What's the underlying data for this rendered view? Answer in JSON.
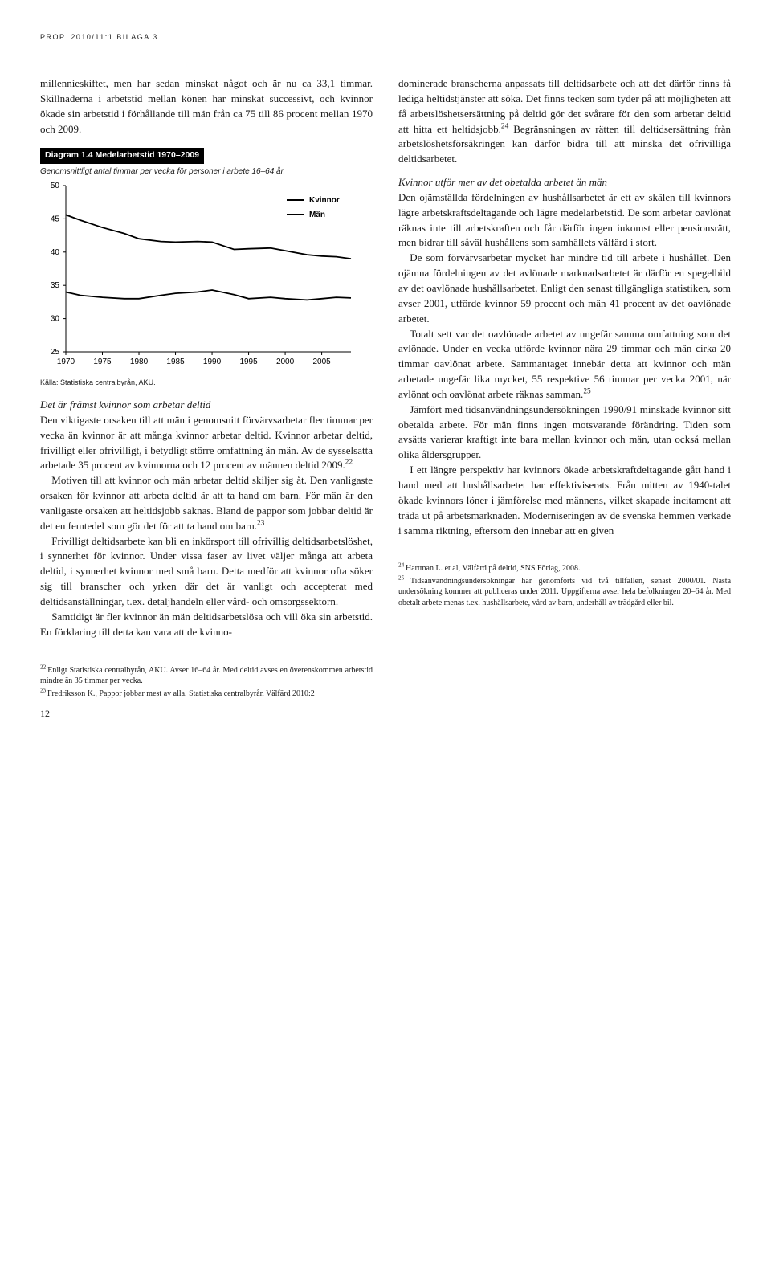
{
  "running_head": "PROP. 2010/11:1 BILAGA 3",
  "page_number": "12",
  "left": {
    "para1": "millennieskiftet, men har sedan minskat något och är nu ca 33,1 timmar. Skillnaderna i arbetstid mellan könen har minskat successivt, och kvinnor ökade sin arbetstid i förhållande till män från ca 75 till 86 procent mellan 1970 och 2009.",
    "diagram": {
      "label": "Diagram 1.4 Medelarbetstid 1970–2009",
      "subtitle": "Genomsnittligt antal timmar per vecka för personer i arbete 16–64 år.",
      "source": "Källa: Statistiska centralbyrån, AKU.",
      "type": "line",
      "xlim": [
        1970,
        2009
      ],
      "ylim": [
        25,
        50
      ],
      "xticks": [
        1970,
        1975,
        1980,
        1985,
        1990,
        1995,
        2000,
        2005
      ],
      "yticks": [
        25,
        30,
        35,
        40,
        45,
        50
      ],
      "background": "#ffffff",
      "axis_color": "#000000",
      "line_width": 1.8,
      "legend": [
        "Kvinnor",
        "Män"
      ],
      "series": {
        "kvinnor": {
          "color": "#000000",
          "x": [
            1970,
            1972,
            1975,
            1978,
            1980,
            1983,
            1985,
            1988,
            1990,
            1993,
            1995,
            1998,
            2000,
            2003,
            2005,
            2007,
            2009
          ],
          "y": [
            34.0,
            33.5,
            33.2,
            33.0,
            33.0,
            33.5,
            33.8,
            34.0,
            34.3,
            33.6,
            33.0,
            33.2,
            33.0,
            32.8,
            33.0,
            33.2,
            33.1
          ]
        },
        "man": {
          "color": "#000000",
          "x": [
            1970,
            1972,
            1975,
            1978,
            1980,
            1983,
            1985,
            1988,
            1990,
            1993,
            1995,
            1998,
            2000,
            2003,
            2005,
            2007,
            2009
          ],
          "y": [
            45.6,
            44.8,
            43.7,
            42.8,
            42.0,
            41.6,
            41.5,
            41.6,
            41.5,
            40.4,
            40.5,
            40.6,
            40.2,
            39.6,
            39.4,
            39.3,
            39.0
          ]
        }
      }
    },
    "subhead1": "Det är främst kvinnor som arbetar deltid",
    "para2": "Den viktigaste orsaken till att män i genomsnitt förvärvsarbetar fler timmar per vecka än kvinnor är att många kvinnor arbetar deltid. Kvinnor arbetar deltid, frivilligt eller ofrivilligt, i betydligt större omfattning än män. Av de sysselsatta arbetade 35 procent av kvinnorna och 12 procent av männen deltid 2009.",
    "fn22": "22",
    "para3a": "Motiven till att kvinnor och män arbetar deltid skiljer sig åt. Den vanligaste orsaken för kvinnor att arbeta deltid är att ta hand om barn. För män är den vanligaste orsaken att heltidsjobb saknas. Bland de pappor som jobbar deltid är det en femtedel som gör det för att ta hand om barn.",
    "fn23": "23",
    "para3b": "Frivilligt deltidsarbete kan bli en inkörsport till ofrivillig deltidsarbetslöshet, i synnerhet för kvinnor. Under vissa faser av livet väljer många att arbeta deltid, i synnerhet kvinnor med små barn. Detta medför att kvinnor ofta söker sig till branscher och yrken där det är vanligt och accepterat med deltidsanställningar, t.ex. detaljhandeln eller vård- och omsorgssektorn.",
    "para4": "Samtidigt är fler kvinnor än män deltidsarbetslösa och vill öka sin arbetstid. En förklaring till detta kan vara att de kvinno-"
  },
  "right": {
    "para1a": "dominerade branscherna anpassats till deltidsarbete och att det därför finns få lediga heltidstjänster att söka. Det finns tecken som tyder på att möjligheten att få arbetslöshetsersättning på deltid gör det svårare för den som arbetar deltid att hitta ett heltidsjobb.",
    "fn24": "24",
    "para1b": " Begränsningen av rätten till deltidsersättning från arbetslöshetsförsäkringen kan därför bidra till att minska det ofrivilliga deltidsarbetet.",
    "subhead1": "Kvinnor utför mer av det obetalda arbetet än män",
    "para2": "Den ojämställda fördelningen av hushållsarbetet är ett av skälen till kvinnors lägre arbetskraftsdeltagande och lägre medelarbetstid. De som arbetar oavlönat räknas inte till arbetskraften och får därför ingen inkomst eller pensionsrätt, men bidrar till såväl hushållens som samhällets välfärd i stort.",
    "para3": "De som förvärvsarbetar mycket har mindre tid till arbete i hushållet. Den ojämna fördelningen av det avlönade marknadsarbetet är därför en spegelbild av det oavlönade hushållsarbetet. Enligt den senast tillgängliga statistiken, som avser 2001, utförde kvinnor 59 procent och män 41 procent av det oavlönade arbetet.",
    "para4a": "Totalt sett var det oavlönade arbetet av ungefär samma omfattning som det avlönade. Under en vecka utförde kvinnor nära 29 timmar och män cirka 20 timmar oavlönat arbete. Sammantaget innebär detta att kvinnor och män arbetade ungefär lika mycket, 55 respektive 56 timmar per vecka 2001, när avlönat och oavlönat arbete räknas samman.",
    "fn25": "25",
    "para5": "Jämfört med tidsanvändningsundersökningen 1990/91 minskade kvinnor sitt obetalda arbete. För män finns ingen motsvarande förändring. Tiden som avsätts varierar kraftigt inte bara mellan kvinnor och män, utan också mellan olika åldersgrupper.",
    "para6": "I ett längre perspektiv har kvinnors ökade arbetskraftdeltagande gått hand i hand med att hushållsarbetet har effektiviserats. Från mitten av 1940-talet ökade kvinnors löner i jämförelse med männens, vilket skapade incitament att träda ut på arbetsmarknaden. Moderniseringen av de svenska hemmen verkade i samma riktning, eftersom den innebar att en given"
  },
  "footnotes": {
    "left": [
      {
        "n": "22",
        "text": "Enligt Statistiska centralbyrån, AKU. Avser 16–64 år. Med deltid avses en överenskommen arbetstid mindre än 35 timmar per vecka."
      },
      {
        "n": "23",
        "text": "Fredriksson K., Pappor jobbar mest av alla, Statistiska centralbyrån Välfärd 2010:2"
      }
    ],
    "right": [
      {
        "n": "24",
        "text": "Hartman L. et al, Välfärd på deltid, SNS Förlag, 2008."
      },
      {
        "n": "25",
        "text": "Tidsanvändningsundersökningar har genomförts vid två tillfällen, senast 2000/01. Nästa undersökning kommer att publiceras under 2011. Uppgifterna avser hela befolkningen 20–64 år. Med obetalt arbete menas t.ex. hushållsarbete, vård av barn, underhåll av trädgård eller bil."
      }
    ]
  }
}
